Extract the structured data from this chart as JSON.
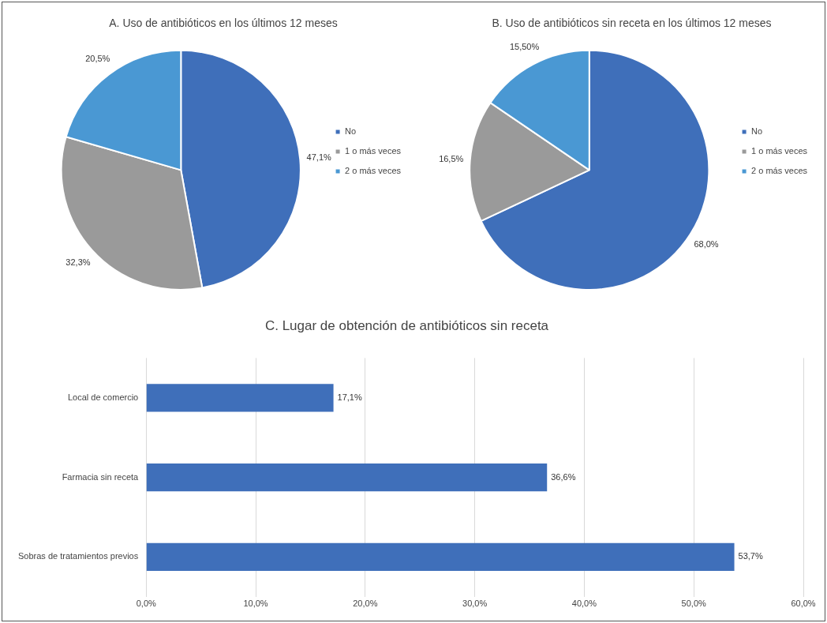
{
  "chart_data": [
    {
      "type": "pie",
      "title": "A. Uso de antibióticos en los últimos 12 meses",
      "categories": [
        "No",
        "1 o más veces",
        "2 o más veces"
      ],
      "values": [
        47.1,
        32.3,
        20.5
      ],
      "colors": [
        "#3f6fba",
        "#9a9a9a",
        "#4a98d3"
      ],
      "value_labels": [
        "47,1%",
        "32,3%",
        "20,5%"
      ],
      "legend": "right"
    },
    {
      "type": "pie",
      "title": "B. Uso de antibióticos sin receta en los últimos 12 meses",
      "categories": [
        "No",
        "1 o más veces",
        "2 o más veces"
      ],
      "values": [
        68.0,
        16.5,
        15.5
      ],
      "colors": [
        "#3f6fba",
        "#9a9a9a",
        "#4a98d3"
      ],
      "value_labels": [
        "68,0%",
        "16,5%",
        "15,50%"
      ],
      "legend": "right"
    },
    {
      "type": "bar",
      "orientation": "horizontal",
      "title": "C. Lugar de obtención de antibióticos sin receta",
      "categories": [
        "Local de comercio",
        "Farmacia sin receta",
        "Sobras de tratamientos previos"
      ],
      "values": [
        17.1,
        36.6,
        53.7
      ],
      "color": "#3f6fba",
      "value_labels": [
        "17,1%",
        "36,6%",
        "53,7%"
      ],
      "xlim": [
        0,
        60
      ],
      "xticks": [
        {
          "value": 0,
          "label": "0,0%"
        },
        {
          "value": 10,
          "label": "10,0%"
        },
        {
          "value": 20,
          "label": "20,0%"
        },
        {
          "value": 30,
          "label": "30,0%"
        },
        {
          "value": 40,
          "label": "40,0%"
        },
        {
          "value": 50,
          "label": "50,0%"
        },
        {
          "value": 60,
          "label": "60,0%"
        }
      ],
      "grid": "x",
      "legend": false
    }
  ]
}
